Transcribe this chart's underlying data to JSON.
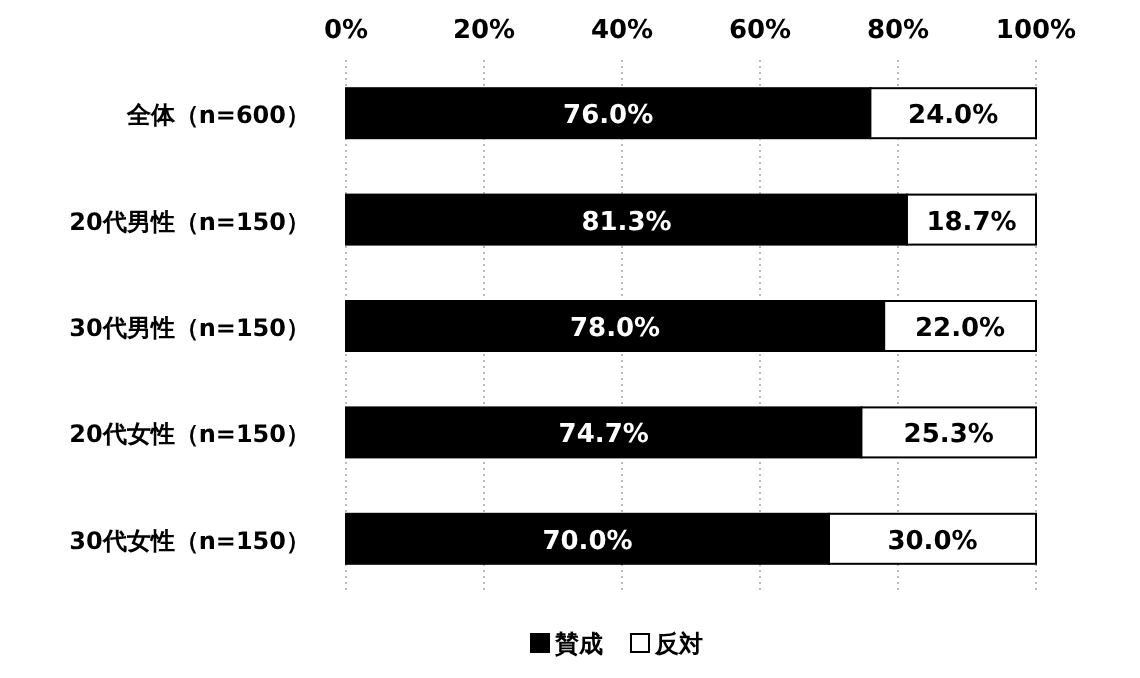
{
  "chart_data": {
    "type": "bar",
    "orientation": "horizontal",
    "stacked": true,
    "categories": [
      "全体（n=600）",
      "20代男性（n=150）",
      "30代男性（n=150）",
      "20代女性（n=150）",
      "30代女性（n=150）"
    ],
    "series": [
      {
        "name": "賛成",
        "color": "#000000",
        "values": [
          76.0,
          81.3,
          78.0,
          74.7,
          70.0
        ],
        "value_labels": [
          "76.0%",
          "81.3%",
          "78.0%",
          "74.7%",
          "70.0%"
        ]
      },
      {
        "name": "反対",
        "color": "#ffffff",
        "values": [
          24.0,
          18.7,
          22.0,
          25.3,
          30.0
        ],
        "value_labels": [
          "24.0%",
          "18.7%",
          "22.0%",
          "25.3%",
          "30.0%"
        ]
      }
    ],
    "xlim": [
      0,
      100
    ],
    "xticks": [
      {
        "value": 0,
        "label": "0%"
      },
      {
        "value": 20,
        "label": "20%"
      },
      {
        "value": 40,
        "label": "40%"
      },
      {
        "value": 60,
        "label": "60%"
      },
      {
        "value": 80,
        "label": "80%"
      },
      {
        "value": 100,
        "label": "100%"
      }
    ],
    "grid": "x",
    "legend": "bottom"
  }
}
